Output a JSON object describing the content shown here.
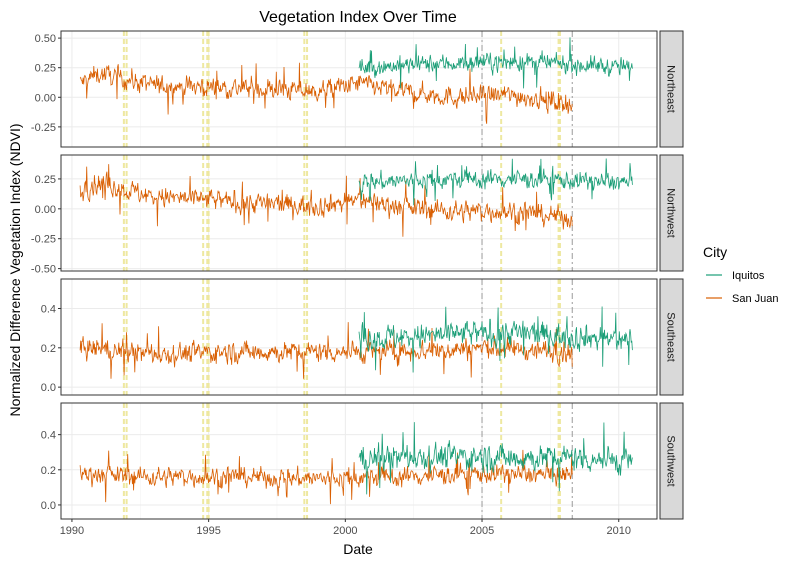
{
  "chart_data": {
    "type": "line",
    "title": "Vegetation Index Over Time",
    "xlabel": "Date",
    "ylabel": "Normalized Difference Vegetation Index (NDVI)",
    "x_ticks": [
      "1990",
      "1995",
      "2000",
      "2005",
      "2010"
    ],
    "xlim": [
      1989.6,
      2011.4
    ],
    "legend": {
      "title": "City",
      "placement": "right",
      "entries": [
        {
          "label": "Iquitos",
          "color": "#1b9e77"
        },
        {
          "label": "San Juan",
          "color": "#d95f02"
        }
      ]
    },
    "highlight_bands_years": [
      1991.9,
      1992.0,
      1994.8,
      1994.95,
      1995.0,
      1998.5,
      1998.6,
      2005.7,
      2007.8,
      2007.85
    ],
    "gray_dashed_lines_years": [
      2005.0,
      2008.3
    ],
    "series_ranges": {
      "Iquitos": [
        2000.5,
        2010.5
      ],
      "San Juan": [
        1990.3,
        2008.3
      ]
    },
    "panels": [
      {
        "strip": "Northeast",
        "y_ticks": [
          "-0.25",
          "0.00",
          "0.25",
          "0.50"
        ],
        "ylim": [
          -0.42,
          0.56
        ],
        "series": [
          {
            "name": "San Juan",
            "anchors": [
              [
                1990.3,
                0.12
              ],
              [
                1991,
                0.2
              ],
              [
                1993,
                0.1
              ],
              [
                1996,
                0.08
              ],
              [
                1999,
                0.05
              ],
              [
                2000.5,
                0.12
              ],
              [
                2002,
                0.05
              ],
              [
                2004,
                0.0
              ],
              [
                2006,
                0.02
              ],
              [
                2008.3,
                -0.05
              ]
            ],
            "noise": 0.08
          },
          {
            "name": "Iquitos",
            "anchors": [
              [
                2000.5,
                0.25
              ],
              [
                2003,
                0.28
              ],
              [
                2006,
                0.3
              ],
              [
                2008,
                0.28
              ],
              [
                2010.5,
                0.25
              ]
            ],
            "noise": 0.07
          }
        ]
      },
      {
        "strip": "Northwest",
        "y_ticks": [
          "-0.50",
          "-0.25",
          "0.00",
          "0.25"
        ],
        "ylim": [
          -0.52,
          0.45
        ],
        "series": [
          {
            "name": "San Juan",
            "anchors": [
              [
                1990.3,
                0.15
              ],
              [
                1991,
                0.22
              ],
              [
                1993,
                0.1
              ],
              [
                1996,
                0.06
              ],
              [
                1999,
                0.02
              ],
              [
                2000.5,
                0.08
              ],
              [
                2002,
                0.02
              ],
              [
                2004,
                -0.02
              ],
              [
                2006,
                -0.02
              ],
              [
                2008.3,
                -0.08
              ]
            ],
            "noise": 0.08
          },
          {
            "name": "Iquitos",
            "anchors": [
              [
                2000.5,
                0.22
              ],
              [
                2003,
                0.24
              ],
              [
                2006,
                0.25
              ],
              [
                2008,
                0.24
              ],
              [
                2010.5,
                0.22
              ]
            ],
            "noise": 0.07
          }
        ]
      },
      {
        "strip": "Southeast",
        "y_ticks": [
          "0.0",
          "0.2",
          "0.4"
        ],
        "ylim": [
          -0.04,
          0.55
        ],
        "series": [
          {
            "name": "San Juan",
            "anchors": [
              [
                1990.3,
                0.2
              ],
              [
                1993,
                0.17
              ],
              [
                1996,
                0.18
              ],
              [
                1999,
                0.18
              ],
              [
                2002,
                0.18
              ],
              [
                2005,
                0.2
              ],
              [
                2008.3,
                0.18
              ]
            ],
            "noise": 0.05
          },
          {
            "name": "Iquitos",
            "anchors": [
              [
                2000.5,
                0.25
              ],
              [
                2003,
                0.26
              ],
              [
                2006,
                0.28
              ],
              [
                2008,
                0.26
              ],
              [
                2010.5,
                0.24
              ]
            ],
            "noise": 0.06
          }
        ]
      },
      {
        "strip": "Southwest",
        "y_ticks": [
          "0.0",
          "0.2",
          "0.4"
        ],
        "ylim": [
          -0.08,
          0.58
        ],
        "series": [
          {
            "name": "San Juan",
            "anchors": [
              [
                1990.3,
                0.18
              ],
              [
                1993,
                0.16
              ],
              [
                1996,
                0.16
              ],
              [
                1999,
                0.15
              ],
              [
                2002,
                0.16
              ],
              [
                2005,
                0.18
              ],
              [
                2008.3,
                0.17
              ]
            ],
            "noise": 0.05
          },
          {
            "name": "Iquitos",
            "anchors": [
              [
                2000.5,
                0.26
              ],
              [
                2003,
                0.28
              ],
              [
                2006,
                0.27
              ],
              [
                2008,
                0.27
              ],
              [
                2010.5,
                0.25
              ]
            ],
            "noise": 0.07
          }
        ]
      }
    ]
  }
}
